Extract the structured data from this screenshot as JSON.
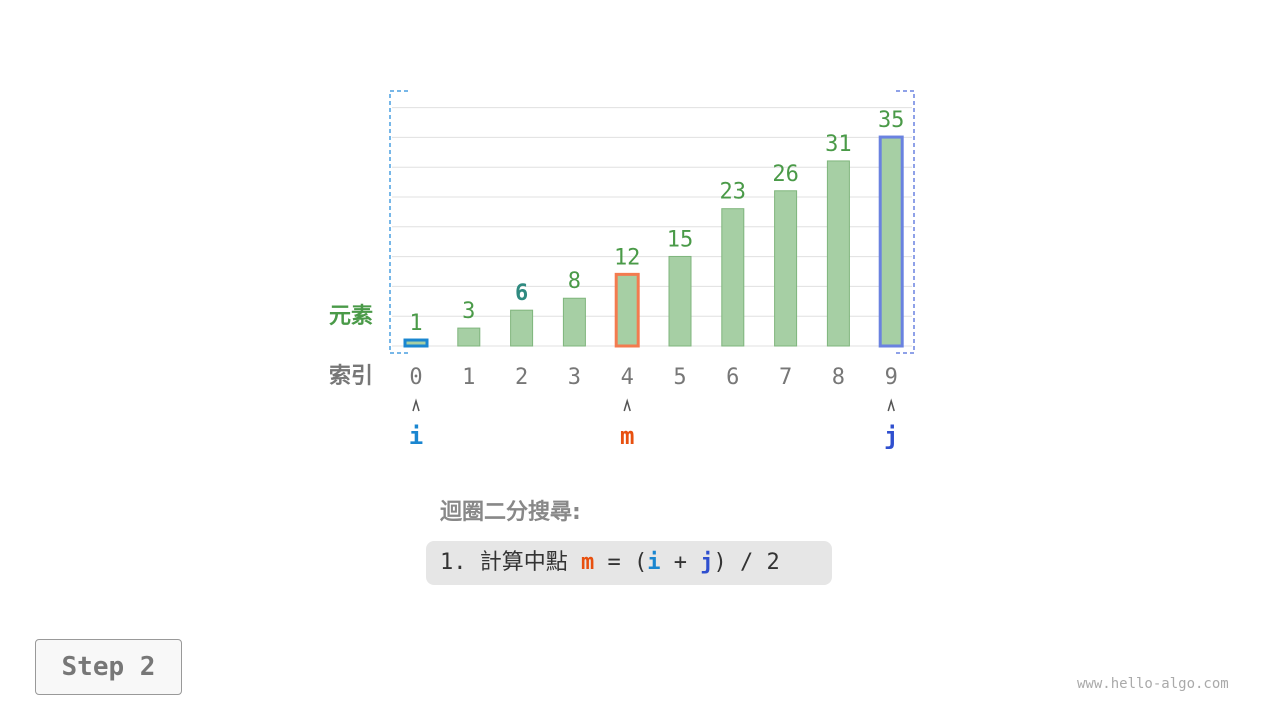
{
  "chart_data": {
    "type": "bar",
    "categories": [
      "0",
      "1",
      "2",
      "3",
      "4",
      "5",
      "6",
      "7",
      "8",
      "9"
    ],
    "values": [
      1,
      3,
      6,
      8,
      12,
      15,
      23,
      26,
      31,
      35
    ],
    "row_labels": {
      "value": "元素",
      "index": "索引"
    },
    "highlight": {
      "i": 0,
      "m": 4,
      "j": 9,
      "target_value_index": 2
    },
    "pointers": {
      "i": "i",
      "m": "m",
      "j": "j"
    },
    "colors": {
      "bar": "#a6cfa4",
      "bar_border": "#7fb57c",
      "value_text": "#4a9a48",
      "target_text": "#2f8a80",
      "i": "#1a86d0",
      "m": "#f37b4f",
      "j": "#6a82e0",
      "index_text": "#777777"
    }
  },
  "algorithm": {
    "title": "迴圈二分搜尋:",
    "step_prefix": "1. 計算中點 ",
    "m": "m",
    "eq": " = (",
    "i": "i",
    "plus": " + ",
    "j": "j",
    "tail": ") / 2"
  },
  "step_button": "Step 2",
  "watermark": "www.hello-algo.com"
}
